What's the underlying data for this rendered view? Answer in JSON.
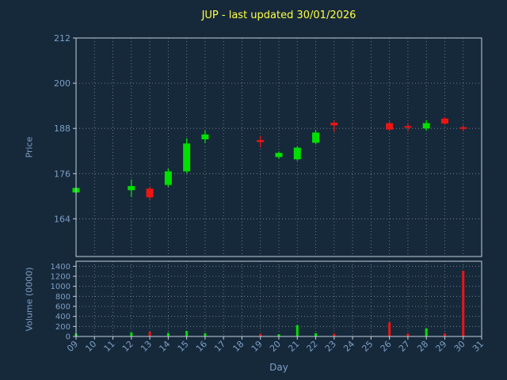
{
  "title": "JUP - last updated 30/01/2026",
  "colors": {
    "background": "#16293b",
    "title": "#ffff42",
    "tick_label": "#7d9fc2",
    "axis_label": "#7d9fc2",
    "frame": "#c3cfdb",
    "grid": "#9fa9b4",
    "up": "#00e000",
    "down": "#ee1511"
  },
  "chart_data": {
    "type": "candlestick",
    "title": "JUP - last updated 30/01/2026",
    "xlabel": "Day",
    "legend": "none",
    "grid": "dotted",
    "x": {
      "lim": [
        9,
        31
      ],
      "ticks": [
        9,
        10,
        11,
        12,
        13,
        14,
        15,
        16,
        17,
        18,
        19,
        20,
        21,
        22,
        23,
        24,
        25,
        26,
        27,
        28,
        29,
        30,
        31
      ],
      "tick_labels": [
        "09",
        "10",
        "11",
        "12",
        "13",
        "14",
        "15",
        "16",
        "17",
        "18",
        "19",
        "20",
        "21",
        "22",
        "23",
        "24",
        "25",
        "26",
        "27",
        "28",
        "29",
        "30",
        "31"
      ]
    },
    "panels": [
      {
        "name": "price",
        "ylabel": "Price",
        "ylim": [
          154,
          212
        ],
        "yticks": [
          164,
          176,
          188,
          200,
          212
        ]
      },
      {
        "name": "volume",
        "ylabel": "Volume (0000)",
        "ylim": [
          0,
          1500
        ],
        "yticks": [
          0,
          200,
          400,
          600,
          800,
          1000,
          1200,
          1400
        ]
      }
    ],
    "candles": [
      {
        "day": 9,
        "open": 171.0,
        "high": 172.4,
        "low": 170.6,
        "close": 172.2,
        "volume": 60
      },
      {
        "day": 12,
        "open": 171.6,
        "high": 174.4,
        "low": 169.8,
        "close": 172.7,
        "volume": 80
      },
      {
        "day": 13,
        "open": 172.0,
        "high": 172.6,
        "low": 169.2,
        "close": 169.7,
        "volume": 95
      },
      {
        "day": 14,
        "open": 173.0,
        "high": 177.3,
        "low": 172.5,
        "close": 176.6,
        "volume": 70
      },
      {
        "day": 15,
        "open": 176.6,
        "high": 185.4,
        "low": 176.1,
        "close": 184.0,
        "volume": 110
      },
      {
        "day": 16,
        "open": 185.1,
        "high": 187.4,
        "low": 184.1,
        "close": 186.4,
        "volume": 65
      },
      {
        "day": 19,
        "open": 184.9,
        "high": 186.0,
        "low": 183.0,
        "close": 184.4,
        "volume": 55
      },
      {
        "day": 20,
        "open": 180.4,
        "high": 181.9,
        "low": 180.0,
        "close": 181.5,
        "volume": 45
      },
      {
        "day": 21,
        "open": 179.8,
        "high": 183.2,
        "low": 179.4,
        "close": 182.9,
        "volume": 225
      },
      {
        "day": 22,
        "open": 184.2,
        "high": 187.5,
        "low": 183.8,
        "close": 186.9,
        "volume": 65
      },
      {
        "day": 23,
        "open": 189.5,
        "high": 190.0,
        "low": 187.1,
        "close": 188.8,
        "volume": 55
      },
      {
        "day": 26,
        "open": 189.4,
        "high": 189.8,
        "low": 187.3,
        "close": 187.7,
        "volume": 280
      },
      {
        "day": 27,
        "open": 188.6,
        "high": 189.4,
        "low": 187.2,
        "close": 188.2,
        "volume": 60
      },
      {
        "day": 28,
        "open": 188.0,
        "high": 190.2,
        "low": 187.4,
        "close": 189.4,
        "volume": 160
      },
      {
        "day": 29,
        "open": 190.6,
        "high": 191.0,
        "low": 189.0,
        "close": 189.3,
        "volume": 60
      },
      {
        "day": 30,
        "open": 188.3,
        "high": 188.8,
        "low": 187.2,
        "close": 187.9,
        "volume": 1310
      }
    ]
  }
}
